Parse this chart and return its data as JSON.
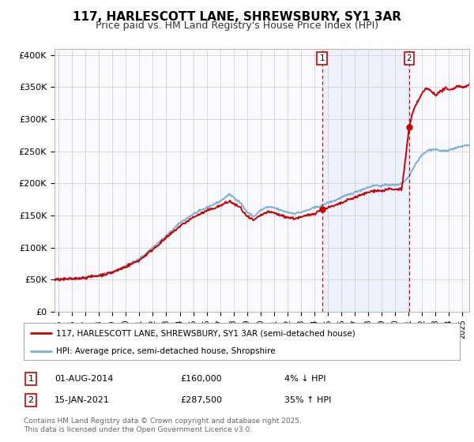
{
  "title": "117, HARLESCOTT LANE, SHREWSBURY, SY1 3AR",
  "subtitle": "Price paid vs. HM Land Registry's House Price Index (HPI)",
  "ylabel_ticks": [
    "£0",
    "£50K",
    "£100K",
    "£150K",
    "£200K",
    "£250K",
    "£300K",
    "£350K",
    "£400K"
  ],
  "ytick_values": [
    0,
    50000,
    100000,
    150000,
    200000,
    250000,
    300000,
    350000,
    400000
  ],
  "ylim": [
    0,
    410000
  ],
  "xlim_start": 1994.7,
  "xlim_end": 2025.5,
  "hpi_color": "#7ab0d4",
  "price_color": "#cc0000",
  "shade_color": "#ddeeff",
  "sale1": {
    "date_num": 2014.58,
    "price": 160000,
    "label": "1",
    "pct": "4% ↓ HPI",
    "date_str": "01-AUG-2014",
    "price_str": "£160,000"
  },
  "sale2": {
    "date_num": 2021.04,
    "price": 287500,
    "label": "2",
    "pct": "35% ↑ HPI",
    "date_str": "15-JAN-2021",
    "price_str": "£287,500"
  },
  "legend_line1": "117, HARLESCOTT LANE, SHREWSBURY, SY1 3AR (semi-detached house)",
  "legend_line2": "HPI: Average price, semi-detached house, Shropshire",
  "footnote": "Contains HM Land Registry data © Crown copyright and database right 2025.\nThis data is licensed under the Open Government Licence v3.0.",
  "bg_color": "#ffffff",
  "plot_bg_color": "#f8f8ff",
  "grid_color": "#cccccc",
  "title_fontsize": 11,
  "subtitle_fontsize": 9,
  "tick_fontsize": 8,
  "hpi_linewidth": 1.4,
  "price_linewidth": 1.4
}
